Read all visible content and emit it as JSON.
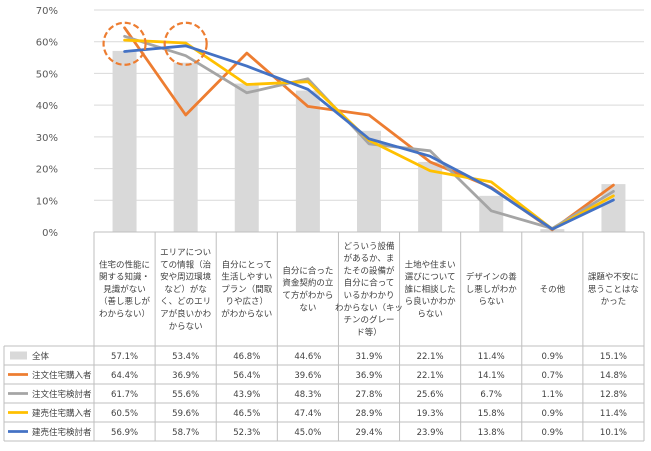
{
  "chart_data": {
    "type": "bar",
    "ylim": [
      0,
      70
    ],
    "yticks": [
      "0%",
      "10%",
      "20%",
      "30%",
      "40%",
      "50%",
      "60%",
      "70%"
    ],
    "grid": true,
    "categories": [
      "住宅の性能に関する知識・見識がない（善し悪しがわからない）",
      "エリアについての情報（治安や周辺環境など）がなく、どのエリアが良いかわからない",
      "自分にとって生活しやすいプラン（間取りや広さ）がわからない",
      "自分に合った資金契約の立て方がわからない",
      "どういう設備があるか、またその設備が自分に合っているかわからない（キッチンのグレード等）",
      "土地や住まい選びについて誰に相談したら良いかわからない",
      "デザインの善し悪しがわからない",
      "その他",
      "課題や不安に思うことはなかった"
    ],
    "category_lines": [
      [
        "住宅の性能に",
        "関する知識・",
        "見識がない",
        "（善し悪しが",
        "わからない）"
      ],
      [
        "エリアについ",
        "ての情報（治",
        "安や周辺環境",
        "など）がな",
        "く、どのエリ",
        "アが良いかわ",
        "からない"
      ],
      [
        "自分にとって",
        "生活しやすい",
        "プラン（間取",
        "りや広さ）",
        "がわからない"
      ],
      [
        "自分に合った",
        "資金契約の立",
        "て方がわから",
        "ない"
      ],
      [
        "どういう設備",
        "があるか、ま",
        "たその設備が",
        "自分に合って",
        "いるかわかり",
        "わからない（キッ",
        "チンのグレー",
        "ド等）"
      ],
      [
        "土地や住まい",
        "選びについて",
        "誰に相談した",
        "ら良いかわか",
        "らない"
      ],
      [
        "デザインの善",
        "し悪しがわか",
        "らない"
      ],
      [
        "その他"
      ],
      [
        "課題や不安に",
        "思うことはな",
        "かった"
      ]
    ],
    "series": [
      {
        "name": "全体",
        "kind": "bar",
        "color": "#d9d9d9",
        "values": [
          57.1,
          53.4,
          46.8,
          44.6,
          31.9,
          22.1,
          11.4,
          0.9,
          15.1
        ],
        "labels": [
          "57.1%",
          "53.4%",
          "46.8%",
          "44.6%",
          "31.9%",
          "22.1%",
          "11.4%",
          "0.9%",
          "15.1%"
        ]
      },
      {
        "name": "注文住宅購入者",
        "kind": "line",
        "color": "#ed7d31",
        "values": [
          64.4,
          36.9,
          56.4,
          39.6,
          36.9,
          22.1,
          14.1,
          0.7,
          14.8
        ],
        "labels": [
          "64.4%",
          "36.9%",
          "56.4%",
          "39.6%",
          "36.9%",
          "22.1%",
          "14.1%",
          "0.7%",
          "14.8%"
        ]
      },
      {
        "name": "注文住宅検討者",
        "kind": "line",
        "color": "#a5a5a5",
        "values": [
          61.7,
          55.6,
          43.9,
          48.3,
          27.8,
          25.6,
          6.7,
          1.1,
          12.8
        ],
        "labels": [
          "61.7%",
          "55.6%",
          "43.9%",
          "48.3%",
          "27.8%",
          "25.6%",
          "6.7%",
          "1.1%",
          "12.8%"
        ]
      },
      {
        "name": "建売住宅購入者",
        "kind": "line",
        "color": "#ffc000",
        "values": [
          60.5,
          59.6,
          46.5,
          47.4,
          28.9,
          19.3,
          15.8,
          0.9,
          11.4
        ],
        "labels": [
          "60.5%",
          "59.6%",
          "46.5%",
          "47.4%",
          "28.9%",
          "19.3%",
          "15.8%",
          "0.9%",
          "11.4%"
        ]
      },
      {
        "name": "建売住宅検討者",
        "kind": "line",
        "color": "#4472c4",
        "values": [
          56.9,
          58.7,
          52.3,
          45.0,
          29.4,
          23.9,
          13.8,
          0.9,
          10.1
        ],
        "labels": [
          "56.9%",
          "58.7%",
          "52.3%",
          "45.0%",
          "29.4%",
          "23.9%",
          "13.8%",
          "0.9%",
          "10.1%"
        ]
      }
    ],
    "highlight_circles": {
      "categories": [
        0,
        1
      ],
      "value": 62.5,
      "color": "#ed7d31"
    }
  }
}
